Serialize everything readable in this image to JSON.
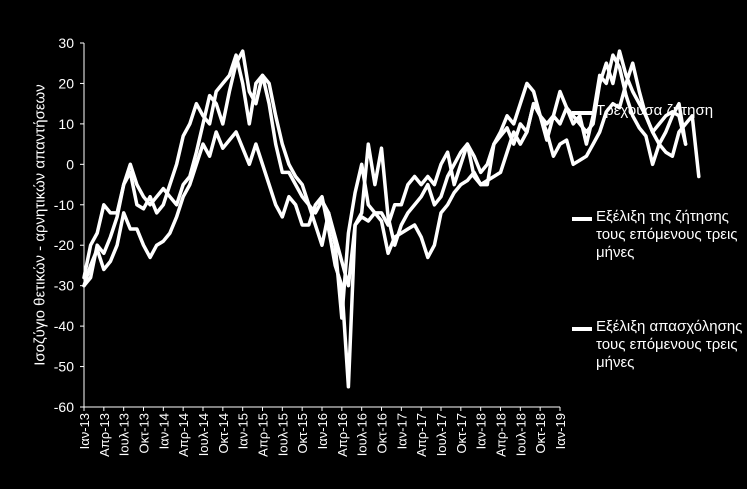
{
  "chart_data": {
    "type": "line",
    "ylabel": "Ισοζύγιο θετικών - αρνητικών απαντήσεων",
    "xlabel": "",
    "ylim": [
      -60,
      30
    ],
    "yticks": [
      30,
      20,
      10,
      0,
      -10,
      -20,
      -30,
      -40,
      -50,
      -60
    ],
    "tick_labels": [
      "Ιαν-13",
      "Απρ-13",
      "Ιουλ-13",
      "Οκτ-13",
      "Ιαν-14",
      "Απρ-14",
      "Ιουλ-14",
      "Οκτ-14",
      "Ιαν-15",
      "Απρ-15",
      "Ιουλ-15",
      "Οκτ-15",
      "Ιαν-16",
      "Απρ-16",
      "Ιουλ-16",
      "Οκτ-16",
      "Ιαν-17",
      "Απρ-17",
      "Ιουλ-17",
      "Οκτ-17",
      "Ιαν-18",
      "Απρ-18",
      "Ιουλ-18",
      "Οκτ-18",
      "Ιαν-19"
    ],
    "months_per_tick": 3,
    "grid": false,
    "legend_position": "right",
    "line_color": "#ffffff",
    "background": "#000000",
    "series": [
      {
        "name": "Τρέχουσα ζήτηση",
        "values": [
          -30,
          -25,
          -21,
          -26,
          -24,
          -20,
          -12,
          -16,
          -16,
          -20,
          -23,
          -20,
          -19,
          -17,
          -13,
          -8,
          -5,
          0,
          5,
          2,
          8,
          4,
          6,
          8,
          4,
          0,
          5,
          0,
          -5,
          -10,
          -13,
          -8,
          -10,
          -15,
          -15,
          -10,
          -8,
          -16,
          -25,
          -30,
          -55,
          -15,
          -13,
          -14,
          -12,
          -14,
          -22,
          -18,
          -17,
          -16,
          -15,
          -18,
          -23,
          -20,
          -12,
          -10,
          -7,
          -5,
          -4,
          -2,
          -5,
          -4,
          -3,
          -2,
          3,
          8,
          5,
          8,
          15,
          12,
          8,
          2,
          5,
          6,
          0,
          1,
          2,
          5,
          8,
          13,
          15,
          14,
          20,
          25,
          18,
          12,
          8,
          5,
          3,
          2,
          8,
          10,
          12,
          -3
        ]
      },
      {
        "name": "Εξέλιξη της ζήτησης τους επόμενους τρεις μήνες",
        "values": [
          -28,
          -20,
          -17,
          -10,
          -12,
          -12,
          -5,
          -2,
          -10,
          -11,
          -8,
          -12,
          -10,
          -5,
          0,
          7,
          10,
          15,
          12,
          10,
          18,
          20,
          22,
          27,
          20,
          10,
          20,
          22,
          15,
          5,
          -2,
          -2,
          -5,
          -8,
          -10,
          -15,
          -20,
          -12,
          -20,
          -38,
          -17,
          -7,
          0,
          -10,
          -12,
          -12,
          -15,
          -10,
          -10,
          -5,
          -3,
          -5,
          -3,
          -5,
          0,
          3,
          -5,
          0,
          5,
          -3,
          -5,
          -5,
          5,
          7,
          9,
          5,
          10,
          8,
          15,
          12,
          6,
          12,
          10,
          14,
          12,
          10,
          8,
          10,
          20,
          25,
          20,
          28,
          22,
          18,
          15,
          12,
          8,
          10,
          12,
          13,
          12,
          5
        ]
      },
      {
        "name": "Εξέλιξη απασχόλησης τους επόμενους τρεις μήνες",
        "values": [
          -30,
          -28,
          -20,
          -22,
          -18,
          -13,
          -5,
          0,
          -5,
          -8,
          -10,
          -8,
          -6,
          -8,
          -10,
          -5,
          -3,
          3,
          10,
          17,
          15,
          10,
          18,
          25,
          28,
          18,
          15,
          22,
          20,
          12,
          5,
          0,
          -3,
          -5,
          -10,
          -12,
          -9,
          -12,
          -18,
          -24,
          -30,
          -15,
          -12,
          5,
          -5,
          4,
          -13,
          -20,
          -15,
          -12,
          -10,
          -8,
          -5,
          -10,
          -8,
          -3,
          0,
          3,
          5,
          2,
          -2,
          0,
          5,
          8,
          12,
          10,
          15,
          20,
          18,
          12,
          10,
          12,
          18,
          14,
          10,
          12,
          5,
          12,
          22,
          20,
          27,
          24,
          17,
          12,
          9,
          7,
          0,
          5,
          8,
          12,
          15,
          5
        ]
      }
    ]
  }
}
